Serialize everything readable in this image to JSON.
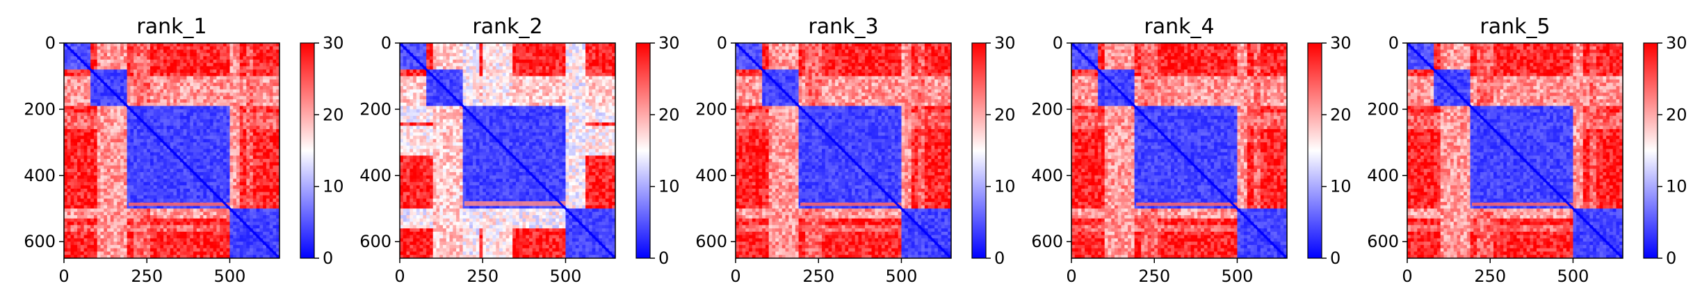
{
  "figure": {
    "colormap": {
      "name": "bwr",
      "stops": [
        "#0000ff",
        "#ffffff",
        "#ff0000"
      ]
    },
    "colorbar": {
      "vmin": 0,
      "vmax": 30,
      "ticks": [
        0,
        10,
        20,
        30
      ],
      "tick_labels": [
        "0",
        "10",
        "20",
        "30"
      ]
    }
  },
  "chart_data": [
    {
      "type": "heatmap",
      "title": "rank_1",
      "size": 650,
      "xticks": [
        0,
        250,
        500
      ],
      "xtick_labels": [
        "0",
        "250",
        "500"
      ],
      "yticks": [
        0,
        200,
        400,
        600
      ],
      "ytick_labels": [
        "0",
        "200",
        "400",
        "600"
      ],
      "blocks": [
        [
          0,
          85,
          3
        ],
        [
          85,
          195,
          2
        ],
        [
          195,
          500,
          2
        ],
        [
          500,
          650,
          2
        ]
      ],
      "background_value": 28,
      "column_bands": [
        [
          100,
          195,
          21
        ],
        [
          215,
          260,
          24
        ],
        [
          500,
          530,
          21
        ],
        [
          555,
          570,
          24
        ]
      ],
      "anomaly_row": [
        482,
        492,
        24
      ]
    },
    {
      "type": "heatmap",
      "title": "rank_2",
      "size": 650,
      "xticks": [
        0,
        250,
        500
      ],
      "xtick_labels": [
        "0",
        "250",
        "500"
      ],
      "yticks": [
        0,
        200,
        400,
        600
      ],
      "ytick_labels": [
        "0",
        "200",
        "400",
        "600"
      ],
      "blocks": [
        [
          0,
          85,
          3
        ],
        [
          85,
          195,
          2
        ],
        [
          195,
          500,
          2
        ],
        [
          500,
          650,
          2
        ]
      ],
      "background_value": 28,
      "column_bands": [
        [
          100,
          195,
          18
        ],
        [
          195,
          240,
          15
        ],
        [
          255,
          340,
          16
        ],
        [
          500,
          560,
          15
        ]
      ],
      "anomaly_row": [
        478,
        492,
        22
      ]
    },
    {
      "type": "heatmap",
      "title": "rank_3",
      "size": 650,
      "xticks": [
        0,
        250,
        500
      ],
      "xtick_labels": [
        "0",
        "250",
        "500"
      ],
      "yticks": [
        0,
        200,
        400,
        600
      ],
      "ytick_labels": [
        "0",
        "200",
        "400",
        "600"
      ],
      "blocks": [
        [
          0,
          85,
          3
        ],
        [
          85,
          195,
          2
        ],
        [
          195,
          500,
          2
        ],
        [
          500,
          650,
          2
        ]
      ],
      "background_value": 28,
      "column_bands": [
        [
          100,
          195,
          21
        ],
        [
          215,
          260,
          24
        ],
        [
          500,
          530,
          21
        ],
        [
          555,
          570,
          24
        ]
      ],
      "anomaly_row": [
        482,
        492,
        24
      ]
    },
    {
      "type": "heatmap",
      "title": "rank_4",
      "size": 650,
      "xticks": [
        0,
        250,
        500
      ],
      "xtick_labels": [
        "0",
        "250",
        "500"
      ],
      "yticks": [
        0,
        200,
        400,
        600
      ],
      "ytick_labels": [
        "0",
        "200",
        "400",
        "600"
      ],
      "blocks": [
        [
          0,
          85,
          3
        ],
        [
          85,
          195,
          2
        ],
        [
          195,
          500,
          2
        ],
        [
          500,
          650,
          2
        ]
      ],
      "background_value": 28,
      "column_bands": [
        [
          100,
          195,
          21
        ],
        [
          215,
          260,
          24
        ],
        [
          500,
          530,
          21
        ],
        [
          555,
          570,
          24
        ]
      ],
      "anomaly_row": [
        482,
        492,
        24
      ]
    },
    {
      "type": "heatmap",
      "title": "rank_5",
      "size": 650,
      "xticks": [
        0,
        250,
        500
      ],
      "xtick_labels": [
        "0",
        "250",
        "500"
      ],
      "yticks": [
        0,
        200,
        400,
        600
      ],
      "ytick_labels": [
        "0",
        "200",
        "400",
        "600"
      ],
      "blocks": [
        [
          0,
          85,
          3
        ],
        [
          85,
          195,
          2
        ],
        [
          195,
          500,
          2
        ],
        [
          500,
          650,
          2
        ]
      ],
      "background_value": 28,
      "column_bands": [
        [
          100,
          195,
          21
        ],
        [
          215,
          260,
          24
        ],
        [
          500,
          530,
          21
        ],
        [
          555,
          570,
          24
        ]
      ],
      "anomaly_row": [
        482,
        492,
        24
      ]
    }
  ]
}
